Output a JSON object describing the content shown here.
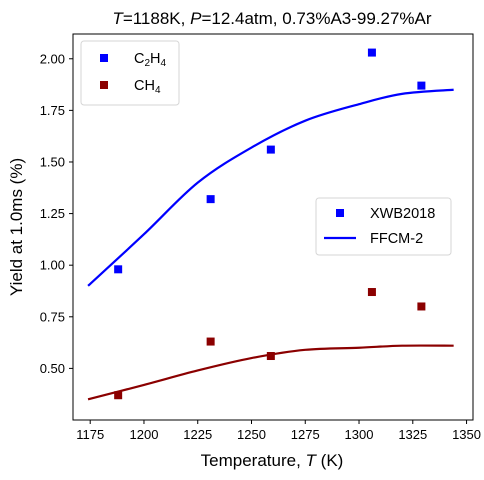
{
  "chart_data": {
    "type": "scatter",
    "title": {
      "T_sym": "T",
      "T_val": "=1188K, ",
      "P_sym": "P",
      "P_val": "=12.4atm, 0.73%A3-99.27%Ar"
    },
    "xlabel": {
      "text": "Temperature, ",
      "sym": "T",
      "unit": " (K)"
    },
    "ylabel": "Yield at 1.0ms (%)",
    "xlim": [
      1167,
      1353
    ],
    "ylim": [
      0.25,
      2.12
    ],
    "xticks": [
      1175,
      1200,
      1225,
      1250,
      1275,
      1300,
      1325,
      1350
    ],
    "yticks": [
      0.5,
      0.75,
      1.0,
      1.25,
      1.5,
      1.75,
      2.0
    ],
    "ytick_labels": [
      "0.50",
      "0.75",
      "1.00",
      "1.25",
      "1.50",
      "1.75",
      "2.00"
    ],
    "grid": false,
    "series": [
      {
        "name": "C2H4",
        "label_base": "C",
        "label_sub1": "2",
        "label_mid": "H",
        "label_sub2": "4",
        "color": "#0000ff",
        "marker": "square",
        "points": [
          [
            1188,
            0.98
          ],
          [
            1231,
            1.32
          ],
          [
            1259,
            1.56
          ],
          [
            1306,
            2.03
          ],
          [
            1329,
            1.87
          ]
        ],
        "model": [
          [
            1174,
            0.9
          ],
          [
            1200,
            1.15
          ],
          [
            1225,
            1.4
          ],
          [
            1250,
            1.57
          ],
          [
            1275,
            1.7
          ],
          [
            1300,
            1.78
          ],
          [
            1320,
            1.83
          ],
          [
            1344,
            1.85
          ]
        ]
      },
      {
        "name": "CH4",
        "label_base": "CH",
        "label_sub1": "4",
        "color": "#8b0000",
        "marker": "square",
        "points": [
          [
            1188,
            0.37
          ],
          [
            1231,
            0.63
          ],
          [
            1259,
            0.56
          ],
          [
            1306,
            0.87
          ],
          [
            1329,
            0.8
          ]
        ],
        "model": [
          [
            1174,
            0.35
          ],
          [
            1200,
            0.42
          ],
          [
            1225,
            0.49
          ],
          [
            1250,
            0.55
          ],
          [
            1275,
            0.59
          ],
          [
            1300,
            0.6
          ],
          [
            1320,
            0.61
          ],
          [
            1344,
            0.61
          ]
        ]
      }
    ],
    "legends": [
      {
        "position": "upper-left",
        "entries": [
          "C2H4",
          "CH4"
        ]
      },
      {
        "position": "center-right",
        "entries": [
          {
            "kind": "marker",
            "label": "XWB2018",
            "color": "#0000ff"
          },
          {
            "kind": "line",
            "label": "FFCM-2",
            "color": "#0000ff"
          }
        ]
      }
    ]
  }
}
